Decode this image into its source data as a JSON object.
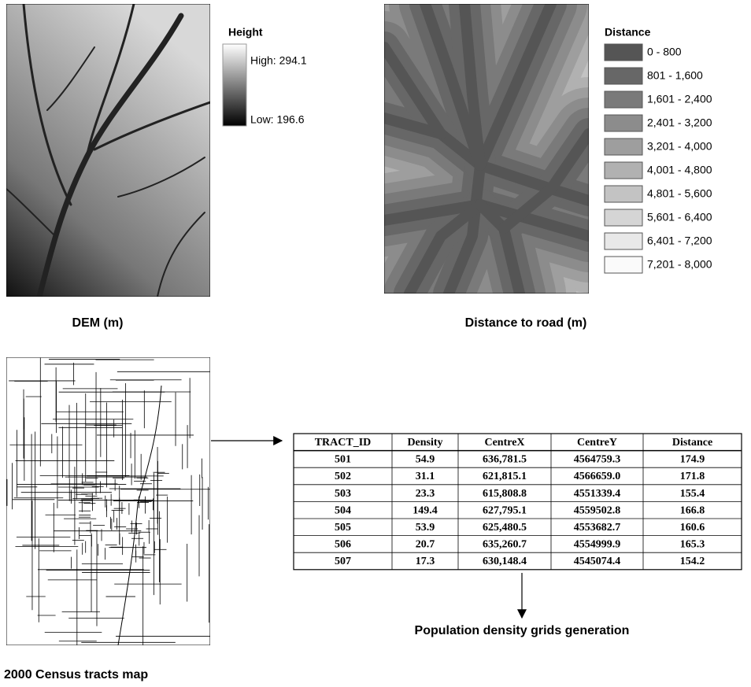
{
  "dem": {
    "legend_title": "Height",
    "high": "High: 294.1",
    "low": "Low: 196.6",
    "caption": "DEM (m)"
  },
  "distance": {
    "legend_title": "Distance",
    "classes": [
      "0 - 800",
      "801 - 1,600",
      "1,601 - 2,400",
      "2,401 - 3,200",
      "3,201 - 4,000",
      "4,001 - 4,800",
      "4,801 - 5,600",
      "5,601 - 6,400",
      "6,401 - 7,200",
      "7,201 - 8,000"
    ],
    "caption": "Distance to road (m)"
  },
  "census": {
    "caption": "2000 Census tracts map"
  },
  "table": {
    "header": [
      "TRACT_ID",
      "Density",
      "CentreX",
      "CentreY",
      "Distance"
    ],
    "rows": [
      [
        "501",
        "54.9",
        "636,781.5",
        "4564759.3",
        "174.9"
      ],
      [
        "502",
        "31.1",
        "621,815.1",
        "4566659.0",
        "171.8"
      ],
      [
        "503",
        "23.3",
        "615,808.8",
        "4551339.4",
        "155.4"
      ],
      [
        "504",
        "149.4",
        "627,795.1",
        "4559502.8",
        "166.8"
      ],
      [
        "505",
        "53.9",
        "625,480.5",
        "4553682.7",
        "160.6"
      ],
      [
        "506",
        "20.7",
        "635,260.7",
        "4554999.9",
        "165.3"
      ],
      [
        "507",
        "17.3",
        "630,148.4",
        "4545074.4",
        "154.2"
      ]
    ]
  },
  "output": {
    "label": "Population density grids generation"
  }
}
